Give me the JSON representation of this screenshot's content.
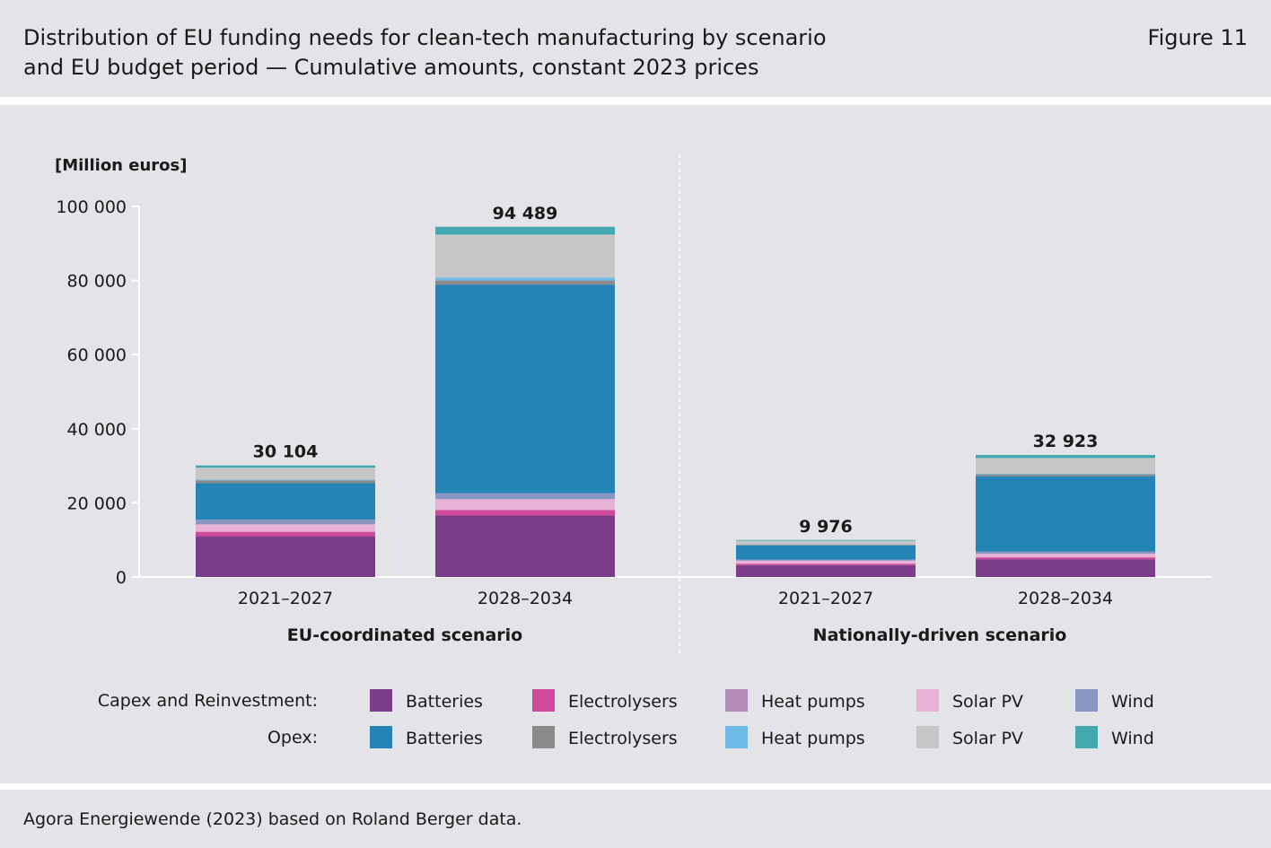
{
  "header": {
    "title_line1": "Distribution of EU funding needs for clean-tech manufacturing by scenario",
    "title_line2": "and EU budget period — Cumulative amounts, constant 2023 prices",
    "figure_label": "Figure 11"
  },
  "footer": {
    "source": "Agora Energiewende (2023) based on Roland Berger data."
  },
  "chart_data": {
    "type": "bar",
    "stacked": true,
    "ylabel": "[Million euros]",
    "ylim": [
      0,
      100000
    ],
    "yticks": [
      0,
      20000,
      40000,
      60000,
      80000,
      100000
    ],
    "ytick_labels": [
      "0",
      "20 000",
      "40 000",
      "60 000",
      "80 000",
      "100 000"
    ],
    "grid": false,
    "groups": [
      {
        "name": "EU-coordinated scenario",
        "categories": [
          "2021–2027",
          "2028–2034"
        ],
        "totals": [
          30104,
          94489
        ],
        "total_labels": [
          "30 104",
          "94 489"
        ]
      },
      {
        "name": "Nationally-driven scenario",
        "categories": [
          "2021–2027",
          "2028–2034"
        ],
        "totals": [
          9976,
          32923
        ],
        "total_labels": [
          "9 976",
          "32 923"
        ]
      }
    ],
    "legend": {
      "row_labels": [
        "Capex and Reinvestment:",
        "Opex:"
      ]
    },
    "series": [
      {
        "type": "Capex and Reinvestment",
        "name": "Batteries",
        "color": "#7b3c8a",
        "values": [
          11000,
          16600,
          3200,
          4800
        ]
      },
      {
        "type": "Capex and Reinvestment",
        "name": "Electrolysers",
        "color": "#d1499b",
        "values": [
          1200,
          1500,
          400,
          500
        ]
      },
      {
        "type": "Capex and Reinvestment",
        "name": "Heat pumps",
        "color": "#b48ab8",
        "values": [
          0,
          0,
          0,
          0
        ]
      },
      {
        "type": "Capex and Reinvestment",
        "name": "Solar PV",
        "color": "#e8b1d6",
        "values": [
          2000,
          2900,
          800,
          1000
        ]
      },
      {
        "type": "Capex and Reinvestment",
        "name": "Wind",
        "color": "#8a96c4",
        "values": [
          1300,
          1600,
          300,
          600
        ]
      },
      {
        "type": "Opex",
        "name": "Batteries",
        "color": "#2484b6",
        "values": [
          9800,
          56300,
          3800,
          20300
        ]
      },
      {
        "type": "Opex",
        "name": "Electrolysers",
        "color": "#8a8a8a",
        "values": [
          800,
          1100,
          200,
          500
        ]
      },
      {
        "type": "Opex",
        "name": "Heat pumps",
        "color": "#6dbbe6",
        "values": [
          200,
          800,
          100,
          200
        ]
      },
      {
        "type": "Opex",
        "name": "Solar PV",
        "color": "#c6c6c6",
        "values": [
          3204,
          11589,
          976,
          4223
        ]
      },
      {
        "type": "Opex",
        "name": "Wind",
        "color": "#43a9b0",
        "values": [
          600,
          2100,
          200,
          800
        ]
      }
    ]
  }
}
